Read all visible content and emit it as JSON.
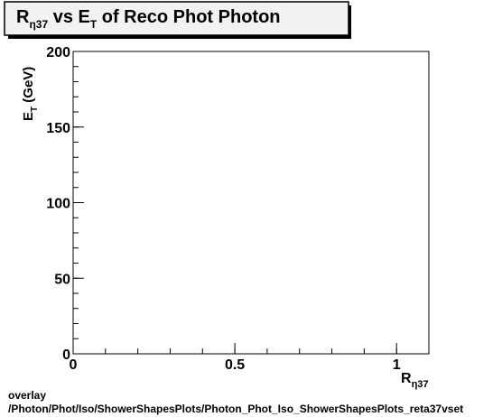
{
  "chart_data": {
    "type": "scatter",
    "title": {
      "main": "R",
      "main_sub": "η37",
      "mid": " vs E",
      "mid_sub": "T",
      "tail": " of Reco Phot Photon"
    },
    "xlabel": {
      "main": "R",
      "sub": "η37"
    },
    "ylabel": {
      "main": "E",
      "sub": "T",
      "tail": " (GeV)"
    },
    "xlim": [
      0,
      1.1
    ],
    "ylim": [
      0,
      200
    ],
    "x_ticks": [
      {
        "v": 0,
        "label": "0"
      },
      {
        "v": 0.5,
        "label": "0.5"
      },
      {
        "v": 1,
        "label": "1"
      }
    ],
    "y_ticks": [
      {
        "v": 0,
        "label": "0"
      },
      {
        "v": 50,
        "label": "50"
      },
      {
        "v": 100,
        "label": "100"
      },
      {
        "v": 150,
        "label": "150"
      },
      {
        "v": 200,
        "label": "200"
      }
    ],
    "grid": false,
    "series": []
  },
  "footer": {
    "line1": "overlay",
    "line2": "/Photon/Phot/Iso/ShowerShapesPlots/Photon_Phot_Iso_ShowerShapesPlots_reta37vset"
  }
}
